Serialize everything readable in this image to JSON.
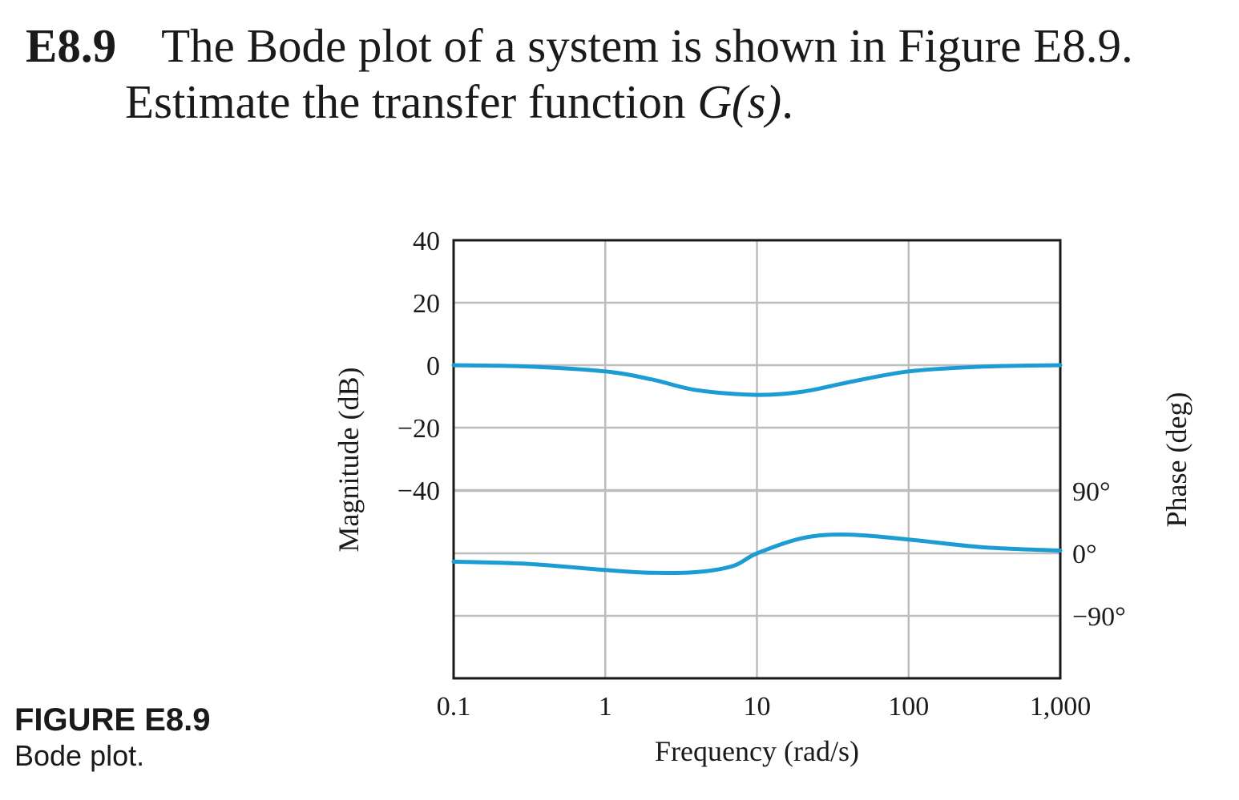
{
  "problem": {
    "number": "E8.9",
    "line1": "The Bode plot of a system is shown in Figure E8.9.",
    "line2_prefix": "Estimate the transfer function ",
    "line2_math": "G(s)",
    "line2_suffix": "."
  },
  "figure": {
    "label": "FIGURE E8.9",
    "description": "Bode plot."
  },
  "colors": {
    "curve": "#1b9cd3",
    "grid": "#bdbdbd",
    "frame": "#1a1a1a"
  },
  "chart_data": {
    "type": "line",
    "title": "",
    "xlabel": "Frequency (rad/s)",
    "ylabel": "Magnitude (dB)",
    "ylabel_right": "Phase (deg)",
    "xscale": "log",
    "xlim": [
      0.1,
      1000
    ],
    "x_ticks": [
      0.1,
      1,
      10,
      100,
      1000
    ],
    "x_tick_labels": [
      "0.1",
      "1",
      "10",
      "100",
      "1,000"
    ],
    "ylim": [
      -100,
      40
    ],
    "y_ticks": [
      40,
      20,
      0,
      -20,
      -40
    ],
    "y_tick_labels": [
      "40",
      "20",
      "0",
      "−20",
      "−40"
    ],
    "phase_axis": {
      "ticks": [
        90,
        0,
        -90
      ],
      "tick_labels": [
        "90°",
        "0°",
        "−90°"
      ]
    },
    "grid": true,
    "series": [
      {
        "id": "magnitude",
        "axis": "left",
        "x": [
          0.1,
          0.3,
          1,
          2,
          4,
          10,
          20,
          40,
          100,
          300,
          1000
        ],
        "y": [
          0,
          -0.4,
          -2,
          -4.5,
          -8,
          -9.5,
          -8.5,
          -5.5,
          -2,
          -0.5,
          0
        ]
      },
      {
        "id": "phase",
        "axis": "right",
        "x": [
          0.1,
          0.3,
          1,
          2,
          4,
          7,
          10,
          20,
          40,
          100,
          300,
          1000
        ],
        "y": [
          -12,
          -15,
          -24,
          -28,
          -27,
          -18,
          0,
          22,
          27,
          20,
          9,
          4
        ]
      }
    ]
  }
}
